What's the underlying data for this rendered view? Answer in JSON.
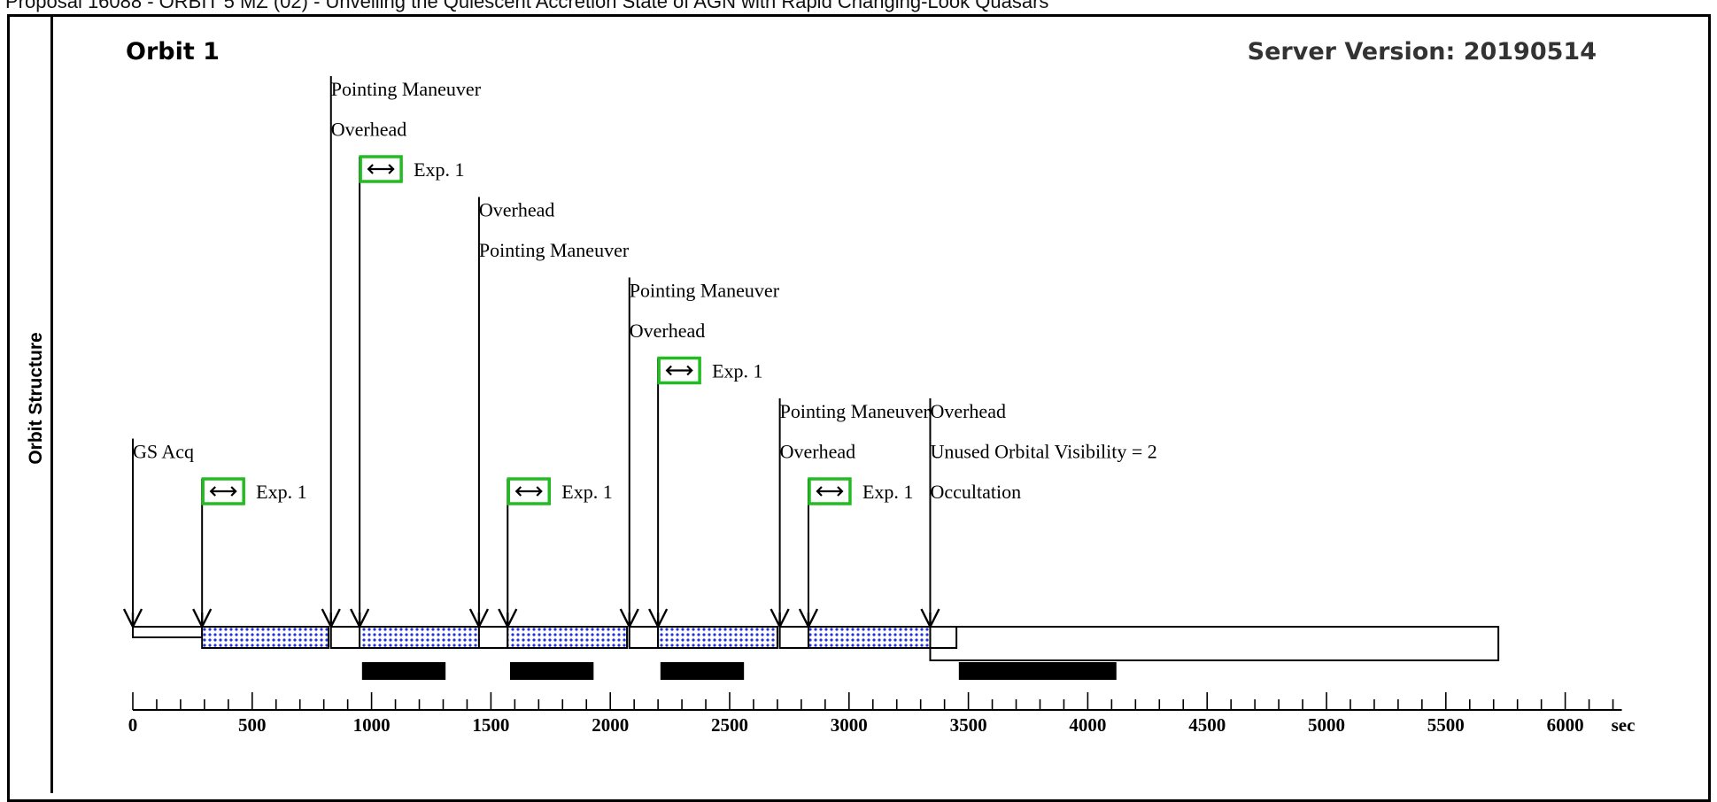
{
  "proposal_header": "Proposal 16088 - ORBIT 5 MZ (02) - Unveiling the Quiescent Accretion State of AGN with Rapid Changing-Look Quasars",
  "side_label": "Orbit Structure",
  "orbit_title": "Orbit 1",
  "server_version": "Server Version: 20190514",
  "colors": {
    "exposure_box": "#22bb22",
    "exposure_fill": "#2233dd",
    "axis": "#000000"
  },
  "icons": {
    "exposure": "double-arrow-icon",
    "event_marker": "down-arrow-icon"
  },
  "axis": {
    "unit": "sec",
    "range": [
      0,
      6200
    ],
    "labeled_ticks": [
      0,
      500,
      1000,
      1500,
      2000,
      2500,
      3000,
      3500,
      4000,
      4500,
      5000,
      5500,
      6000
    ],
    "minor_tick_step": 100
  },
  "events": [
    {
      "time": 0,
      "labels": [
        "GS Acq"
      ]
    },
    {
      "time": 290,
      "labels": [
        "Exp. 1"
      ],
      "exposure": true
    },
    {
      "time": 830,
      "labels": [
        "Pointing Maneuver",
        "Overhead"
      ]
    },
    {
      "time": 950,
      "labels": [
        "Exp. 1"
      ],
      "exposure": true
    },
    {
      "time": 1450,
      "labels": [
        "Overhead",
        "Pointing Maneuver"
      ]
    },
    {
      "time": 1570,
      "labels": [
        "Exp. 1"
      ],
      "exposure": true
    },
    {
      "time": 2080,
      "labels": [
        "Pointing Maneuver",
        "Overhead"
      ]
    },
    {
      "time": 2200,
      "labels": [
        "Exp. 1"
      ],
      "exposure": true
    },
    {
      "time": 2710,
      "labels": [
        "Pointing Maneuver",
        "Overhead"
      ]
    },
    {
      "time": 2830,
      "labels": [
        "Exp. 1"
      ],
      "exposure": true
    },
    {
      "time": 3340,
      "labels": [
        "Overhead",
        "Unused Orbital Visibility = 2",
        "Occultation"
      ]
    }
  ],
  "timeline_segments": [
    {
      "start": 0,
      "end": 290,
      "kind": "overhead"
    },
    {
      "start": 290,
      "end": 820,
      "kind": "exposure"
    },
    {
      "start": 830,
      "end": 950,
      "kind": "overhead"
    },
    {
      "start": 950,
      "end": 1450,
      "kind": "exposure"
    },
    {
      "start": 1450,
      "end": 1570,
      "kind": "overhead"
    },
    {
      "start": 1570,
      "end": 2070,
      "kind": "exposure"
    },
    {
      "start": 2080,
      "end": 2200,
      "kind": "overhead"
    },
    {
      "start": 2200,
      "end": 2700,
      "kind": "exposure"
    },
    {
      "start": 2710,
      "end": 2830,
      "kind": "overhead"
    },
    {
      "start": 2830,
      "end": 3340,
      "kind": "exposure"
    },
    {
      "start": 3340,
      "end": 3450,
      "kind": "overhead"
    },
    {
      "start": 3340,
      "end": 5720,
      "kind": "occultation"
    }
  ],
  "black_bars": [
    {
      "start": 960,
      "end": 1310
    },
    {
      "start": 1580,
      "end": 1930
    },
    {
      "start": 2210,
      "end": 2560
    },
    {
      "start": 3460,
      "end": 4120
    }
  ]
}
